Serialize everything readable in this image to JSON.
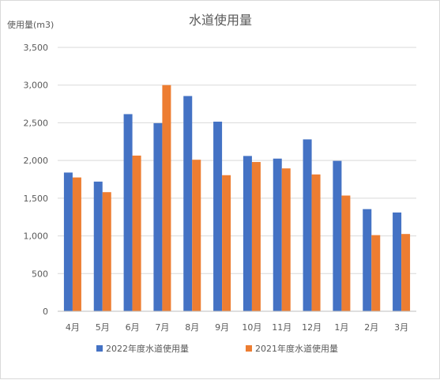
{
  "chart_data": {
    "type": "bar",
    "title": "水道使用量",
    "ylabel": "使用量(m3)",
    "xlabel": "",
    "categories": [
      "4月",
      "5月",
      "6月",
      "7月",
      "8月",
      "9月",
      "10月",
      "11月",
      "12月",
      "1月",
      "2月",
      "3月"
    ],
    "series": [
      {
        "name": "2022年度水道使用量",
        "color": "#4472c4",
        "values": [
          1840,
          1720,
          2615,
          2495,
          2855,
          2515,
          2060,
          2025,
          2280,
          1995,
          1355,
          1310
        ]
      },
      {
        "name": "2021年度水道使用量",
        "color": "#ed7d31",
        "values": [
          1775,
          1580,
          2065,
          3000,
          2010,
          1805,
          1980,
          1895,
          1815,
          1535,
          1010,
          1025
        ]
      }
    ],
    "ylim": [
      0,
      3500
    ],
    "yticks": [
      "0",
      "500",
      "1,000",
      "1,500",
      "2,000",
      "2,500",
      "3,000",
      "3,500"
    ],
    "ytick_values": [
      0,
      500,
      1000,
      1500,
      2000,
      2500,
      3000,
      3500
    ],
    "grid": true,
    "legend_position": "bottom"
  }
}
